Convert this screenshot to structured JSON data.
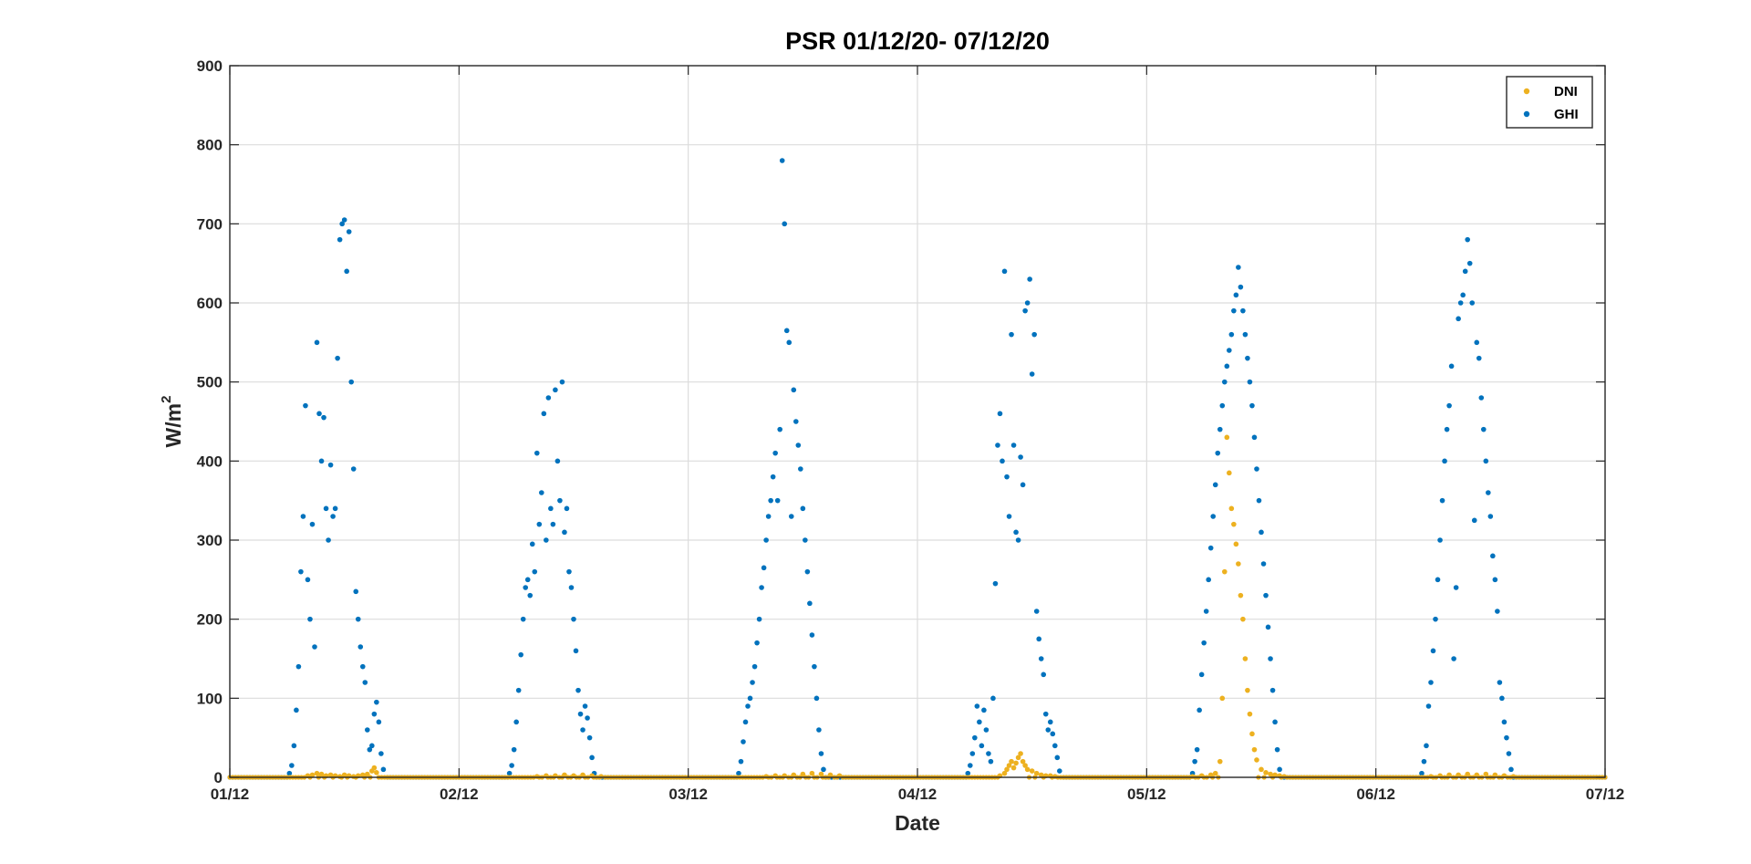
{
  "chart_data": {
    "type": "scatter",
    "title": "PSR 01/12/20- 07/12/20",
    "xlabel": "Date",
    "ylabel_base": "W/m",
    "ylabel_sup": "2",
    "x_ticks": [
      "01/12",
      "02/12",
      "03/12",
      "04/12",
      "05/12",
      "06/12",
      "07/12"
    ],
    "y_ticks": [
      0,
      100,
      200,
      300,
      400,
      500,
      600,
      700,
      800,
      900
    ],
    "xlim_days": [
      1,
      7
    ],
    "ylim": [
      0,
      900
    ],
    "grid": true,
    "legend_position": "top-right",
    "series": [
      {
        "name": "DNI",
        "color": "#EDB120",
        "points": [
          [
            1.34,
            2
          ],
          [
            1.36,
            3
          ],
          [
            1.38,
            5
          ],
          [
            1.4,
            4
          ],
          [
            1.42,
            2
          ],
          [
            1.44,
            3
          ],
          [
            1.46,
            2
          ],
          [
            1.48,
            1
          ],
          [
            1.5,
            3
          ],
          [
            1.52,
            2
          ],
          [
            1.54,
            1
          ],
          [
            1.56,
            2
          ],
          [
            1.58,
            3
          ],
          [
            1.6,
            4
          ],
          [
            1.62,
            8
          ],
          [
            1.63,
            12
          ],
          [
            1.64,
            6
          ],
          [
            2.34,
            1
          ],
          [
            2.38,
            2
          ],
          [
            2.42,
            2
          ],
          [
            2.46,
            3
          ],
          [
            2.5,
            2
          ],
          [
            2.54,
            3
          ],
          [
            2.58,
            2
          ],
          [
            2.62,
            1
          ],
          [
            3.34,
            1
          ],
          [
            3.38,
            2
          ],
          [
            3.42,
            2
          ],
          [
            3.46,
            3
          ],
          [
            3.5,
            4
          ],
          [
            3.54,
            5
          ],
          [
            3.58,
            4
          ],
          [
            3.62,
            3
          ],
          [
            3.66,
            2
          ],
          [
            4.36,
            2
          ],
          [
            4.38,
            5
          ],
          [
            4.39,
            10
          ],
          [
            4.4,
            15
          ],
          [
            4.41,
            20
          ],
          [
            4.42,
            12
          ],
          [
            4.43,
            18
          ],
          [
            4.44,
            25
          ],
          [
            4.45,
            30
          ],
          [
            4.46,
            20
          ],
          [
            4.47,
            15
          ],
          [
            4.48,
            10
          ],
          [
            4.5,
            8
          ],
          [
            4.52,
            5
          ],
          [
            4.54,
            3
          ],
          [
            4.56,
            2
          ],
          [
            4.58,
            2
          ],
          [
            4.6,
            1
          ],
          [
            5.2,
            1
          ],
          [
            5.24,
            2
          ],
          [
            5.28,
            3
          ],
          [
            5.3,
            5
          ],
          [
            5.32,
            20
          ],
          [
            5.33,
            100
          ],
          [
            5.34,
            260
          ],
          [
            5.35,
            430
          ],
          [
            5.36,
            385
          ],
          [
            5.37,
            340
          ],
          [
            5.38,
            320
          ],
          [
            5.39,
            295
          ],
          [
            5.4,
            270
          ],
          [
            5.41,
            230
          ],
          [
            5.42,
            200
          ],
          [
            5.43,
            150
          ],
          [
            5.44,
            110
          ],
          [
            5.45,
            80
          ],
          [
            5.46,
            55
          ],
          [
            5.47,
            35
          ],
          [
            5.48,
            22
          ],
          [
            5.5,
            10
          ],
          [
            5.52,
            6
          ],
          [
            5.54,
            4
          ],
          [
            5.56,
            3
          ],
          [
            5.58,
            2
          ],
          [
            5.6,
            1
          ],
          [
            6.24,
            1
          ],
          [
            6.28,
            2
          ],
          [
            6.32,
            3
          ],
          [
            6.36,
            3
          ],
          [
            6.4,
            4
          ],
          [
            6.44,
            3
          ],
          [
            6.48,
            4
          ],
          [
            6.52,
            3
          ],
          [
            6.56,
            2
          ],
          [
            6.6,
            1
          ]
        ]
      },
      {
        "name": "GHI",
        "color": "#0072BD",
        "points": [
          [
            1.26,
            5
          ],
          [
            1.27,
            15
          ],
          [
            1.28,
            40
          ],
          [
            1.29,
            85
          ],
          [
            1.3,
            140
          ],
          [
            1.31,
            260
          ],
          [
            1.32,
            330
          ],
          [
            1.33,
            470
          ],
          [
            1.34,
            250
          ],
          [
            1.35,
            200
          ],
          [
            1.36,
            320
          ],
          [
            1.37,
            165
          ],
          [
            1.38,
            550
          ],
          [
            1.39,
            460
          ],
          [
            1.4,
            400
          ],
          [
            1.41,
            455
          ],
          [
            1.42,
            340
          ],
          [
            1.43,
            300
          ],
          [
            1.44,
            395
          ],
          [
            1.45,
            330
          ],
          [
            1.46,
            340
          ],
          [
            1.47,
            530
          ],
          [
            1.48,
            680
          ],
          [
            1.49,
            700
          ],
          [
            1.5,
            705
          ],
          [
            1.51,
            640
          ],
          [
            1.52,
            690
          ],
          [
            1.53,
            500
          ],
          [
            1.54,
            390
          ],
          [
            1.55,
            235
          ],
          [
            1.56,
            200
          ],
          [
            1.57,
            165
          ],
          [
            1.58,
            140
          ],
          [
            1.59,
            120
          ],
          [
            1.6,
            60
          ],
          [
            1.61,
            35
          ],
          [
            1.62,
            40
          ],
          [
            1.63,
            80
          ],
          [
            1.64,
            95
          ],
          [
            1.65,
            70
          ],
          [
            1.66,
            30
          ],
          [
            1.67,
            10
          ],
          [
            2.22,
            5
          ],
          [
            2.23,
            15
          ],
          [
            2.24,
            35
          ],
          [
            2.25,
            70
          ],
          [
            2.26,
            110
          ],
          [
            2.27,
            155
          ],
          [
            2.28,
            200
          ],
          [
            2.29,
            240
          ],
          [
            2.3,
            250
          ],
          [
            2.31,
            230
          ],
          [
            2.32,
            295
          ],
          [
            2.33,
            260
          ],
          [
            2.34,
            410
          ],
          [
            2.35,
            320
          ],
          [
            2.36,
            360
          ],
          [
            2.37,
            460
          ],
          [
            2.38,
            300
          ],
          [
            2.39,
            480
          ],
          [
            2.4,
            340
          ],
          [
            2.41,
            320
          ],
          [
            2.42,
            490
          ],
          [
            2.43,
            400
          ],
          [
            2.44,
            350
          ],
          [
            2.45,
            500
          ],
          [
            2.46,
            310
          ],
          [
            2.47,
            340
          ],
          [
            2.48,
            260
          ],
          [
            2.49,
            240
          ],
          [
            2.5,
            200
          ],
          [
            2.51,
            160
          ],
          [
            2.52,
            110
          ],
          [
            2.53,
            80
          ],
          [
            2.54,
            60
          ],
          [
            2.55,
            90
          ],
          [
            2.56,
            75
          ],
          [
            2.57,
            50
          ],
          [
            2.58,
            25
          ],
          [
            2.59,
            5
          ],
          [
            3.22,
            5
          ],
          [
            3.23,
            20
          ],
          [
            3.24,
            45
          ],
          [
            3.25,
            70
          ],
          [
            3.26,
            90
          ],
          [
            3.27,
            100
          ],
          [
            3.28,
            120
          ],
          [
            3.29,
            140
          ],
          [
            3.3,
            170
          ],
          [
            3.31,
            200
          ],
          [
            3.32,
            240
          ],
          [
            3.33,
            265
          ],
          [
            3.34,
            300
          ],
          [
            3.35,
            330
          ],
          [
            3.36,
            350
          ],
          [
            3.37,
            380
          ],
          [
            3.38,
            410
          ],
          [
            3.39,
            350
          ],
          [
            3.4,
            440
          ],
          [
            3.41,
            780
          ],
          [
            3.42,
            700
          ],
          [
            3.43,
            565
          ],
          [
            3.44,
            550
          ],
          [
            3.45,
            330
          ],
          [
            3.46,
            490
          ],
          [
            3.47,
            450
          ],
          [
            3.48,
            420
          ],
          [
            3.49,
            390
          ],
          [
            3.5,
            340
          ],
          [
            3.51,
            300
          ],
          [
            3.52,
            260
          ],
          [
            3.53,
            220
          ],
          [
            3.54,
            180
          ],
          [
            3.55,
            140
          ],
          [
            3.56,
            100
          ],
          [
            3.57,
            60
          ],
          [
            3.58,
            30
          ],
          [
            3.59,
            10
          ],
          [
            4.22,
            5
          ],
          [
            4.23,
            15
          ],
          [
            4.24,
            30
          ],
          [
            4.25,
            50
          ],
          [
            4.26,
            90
          ],
          [
            4.27,
            70
          ],
          [
            4.28,
            40
          ],
          [
            4.29,
            85
          ],
          [
            4.3,
            60
          ],
          [
            4.31,
            30
          ],
          [
            4.32,
            20
          ],
          [
            4.33,
            100
          ],
          [
            4.34,
            245
          ],
          [
            4.35,
            420
          ],
          [
            4.36,
            460
          ],
          [
            4.37,
            400
          ],
          [
            4.38,
            640
          ],
          [
            4.39,
            380
          ],
          [
            4.4,
            330
          ],
          [
            4.41,
            560
          ],
          [
            4.42,
            420
          ],
          [
            4.43,
            310
          ],
          [
            4.44,
            300
          ],
          [
            4.45,
            405
          ],
          [
            4.46,
            370
          ],
          [
            4.47,
            590
          ],
          [
            4.48,
            600
          ],
          [
            4.49,
            630
          ],
          [
            4.5,
            510
          ],
          [
            4.51,
            560
          ],
          [
            4.52,
            210
          ],
          [
            4.53,
            175
          ],
          [
            4.54,
            150
          ],
          [
            4.55,
            130
          ],
          [
            4.56,
            80
          ],
          [
            4.57,
            60
          ],
          [
            4.58,
            70
          ],
          [
            4.59,
            55
          ],
          [
            4.6,
            40
          ],
          [
            4.61,
            25
          ],
          [
            4.62,
            8
          ],
          [
            5.2,
            5
          ],
          [
            5.21,
            20
          ],
          [
            5.22,
            35
          ],
          [
            5.23,
            85
          ],
          [
            5.24,
            130
          ],
          [
            5.25,
            170
          ],
          [
            5.26,
            210
          ],
          [
            5.27,
            250
          ],
          [
            5.28,
            290
          ],
          [
            5.29,
            330
          ],
          [
            5.3,
            370
          ],
          [
            5.31,
            410
          ],
          [
            5.32,
            440
          ],
          [
            5.33,
            470
          ],
          [
            5.34,
            500
          ],
          [
            5.35,
            520
          ],
          [
            5.36,
            540
          ],
          [
            5.37,
            560
          ],
          [
            5.38,
            590
          ],
          [
            5.39,
            610
          ],
          [
            5.4,
            645
          ],
          [
            5.41,
            620
          ],
          [
            5.42,
            590
          ],
          [
            5.43,
            560
          ],
          [
            5.44,
            530
          ],
          [
            5.45,
            500
          ],
          [
            5.46,
            470
          ],
          [
            5.47,
            430
          ],
          [
            5.48,
            390
          ],
          [
            5.49,
            350
          ],
          [
            5.5,
            310
          ],
          [
            5.51,
            270
          ],
          [
            5.52,
            230
          ],
          [
            5.53,
            190
          ],
          [
            5.54,
            150
          ],
          [
            5.55,
            110
          ],
          [
            5.56,
            70
          ],
          [
            5.57,
            35
          ],
          [
            5.58,
            10
          ],
          [
            6.2,
            5
          ],
          [
            6.21,
            20
          ],
          [
            6.22,
            40
          ],
          [
            6.23,
            90
          ],
          [
            6.24,
            120
          ],
          [
            6.25,
            160
          ],
          [
            6.26,
            200
          ],
          [
            6.27,
            250
          ],
          [
            6.28,
            300
          ],
          [
            6.29,
            350
          ],
          [
            6.3,
            400
          ],
          [
            6.31,
            440
          ],
          [
            6.32,
            470
          ],
          [
            6.33,
            520
          ],
          [
            6.34,
            150
          ],
          [
            6.35,
            240
          ],
          [
            6.36,
            580
          ],
          [
            6.37,
            600
          ],
          [
            6.38,
            610
          ],
          [
            6.39,
            640
          ],
          [
            6.4,
            680
          ],
          [
            6.41,
            650
          ],
          [
            6.42,
            600
          ],
          [
            6.43,
            325
          ],
          [
            6.44,
            550
          ],
          [
            6.45,
            530
          ],
          [
            6.46,
            480
          ],
          [
            6.47,
            440
          ],
          [
            6.48,
            400
          ],
          [
            6.49,
            360
          ],
          [
            6.5,
            330
          ],
          [
            6.51,
            280
          ],
          [
            6.52,
            250
          ],
          [
            6.53,
            210
          ],
          [
            6.54,
            120
          ],
          [
            6.55,
            100
          ],
          [
            6.56,
            70
          ],
          [
            6.57,
            50
          ],
          [
            6.58,
            30
          ],
          [
            6.59,
            10
          ]
        ]
      }
    ]
  }
}
